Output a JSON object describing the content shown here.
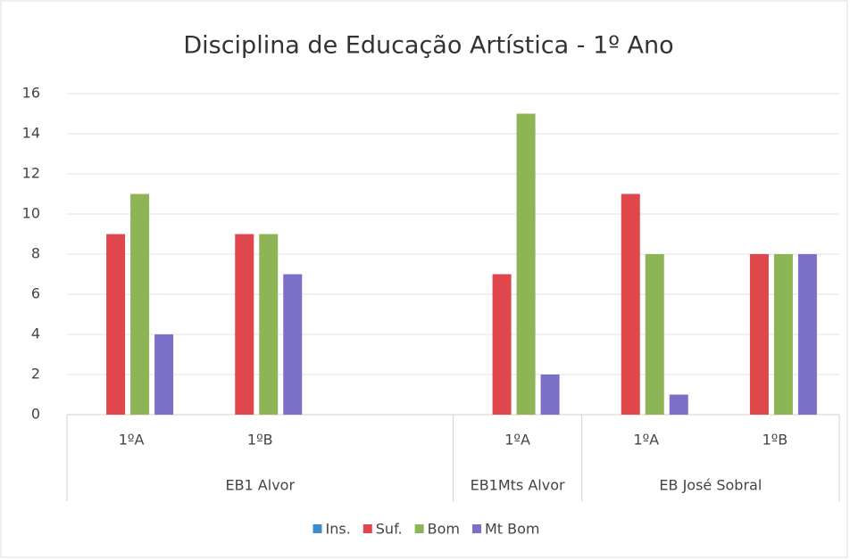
{
  "chart_data": {
    "type": "bar",
    "title": "Disciplina de Educação Artística - 1º Ano",
    "categories": [
      "1ºA",
      "1ºB",
      null,
      "1ºA",
      "1ºA",
      "1ºB"
    ],
    "groups": [
      {
        "name": "EB1 Alvor",
        "start": 0,
        "end": 2
      },
      {
        "name": "EB1Mts Alvor",
        "start": 3,
        "end": 3
      },
      {
        "name": "EB José Sobral",
        "start": 4,
        "end": 5
      }
    ],
    "series": [
      {
        "name": "Ins.",
        "color": "#3d8ccb",
        "values": [
          0,
          0,
          null,
          0,
          0,
          0
        ]
      },
      {
        "name": "Suf.",
        "color": "#df474d",
        "values": [
          9,
          9,
          null,
          7,
          11,
          8
        ]
      },
      {
        "name": "Bom",
        "color": "#8db455",
        "values": [
          11,
          9,
          null,
          15,
          8,
          8
        ]
      },
      {
        "name": "Mt Bom",
        "color": "#7b70c8",
        "values": [
          4,
          7,
          null,
          2,
          1,
          8
        ]
      }
    ],
    "ylim": [
      0,
      16
    ],
    "yticks": [
      0,
      2,
      4,
      6,
      8,
      10,
      12,
      14,
      16
    ],
    "grid": true,
    "legend": "bottom"
  }
}
